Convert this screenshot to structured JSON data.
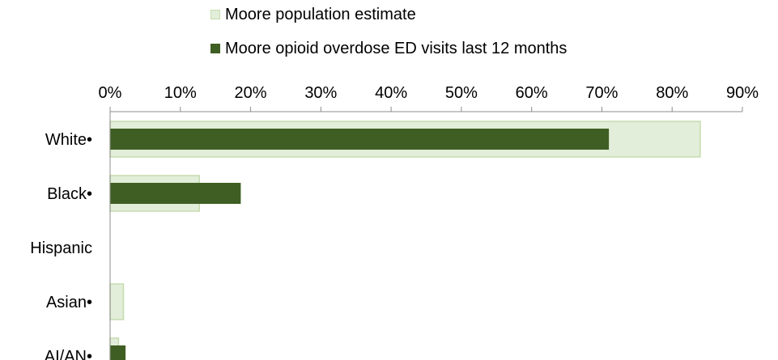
{
  "chart_data": {
    "type": "bar",
    "orientation": "horizontal",
    "categories": [
      "White•",
      "Black•",
      "Hispanic",
      "Asian•",
      "AI/AN•"
    ],
    "series": [
      {
        "name": "Moore population estimate",
        "color": "#e2eed9",
        "border": "#c5dcaf",
        "values": [
          84,
          12.7,
          0,
          1.9,
          1.2
        ]
      },
      {
        "name": "Moore opioid overdose ED visits last 12 months",
        "color": "#3f5e23",
        "border": "#3f5e23",
        "values": [
          71,
          18.6,
          0,
          0,
          2.2
        ]
      }
    ],
    "xlim": [
      0,
      90
    ],
    "x_ticks": [
      0,
      10,
      20,
      30,
      40,
      50,
      60,
      70,
      80,
      90
    ],
    "tick_labels": [
      "0%",
      "10%",
      "20%",
      "30%",
      "40%",
      "50%",
      "60%",
      "70%",
      "80%",
      "90%"
    ],
    "axis_position": "top",
    "legend_position": "top",
    "grid": false,
    "title": "",
    "xlabel": "",
    "ylabel": ""
  }
}
